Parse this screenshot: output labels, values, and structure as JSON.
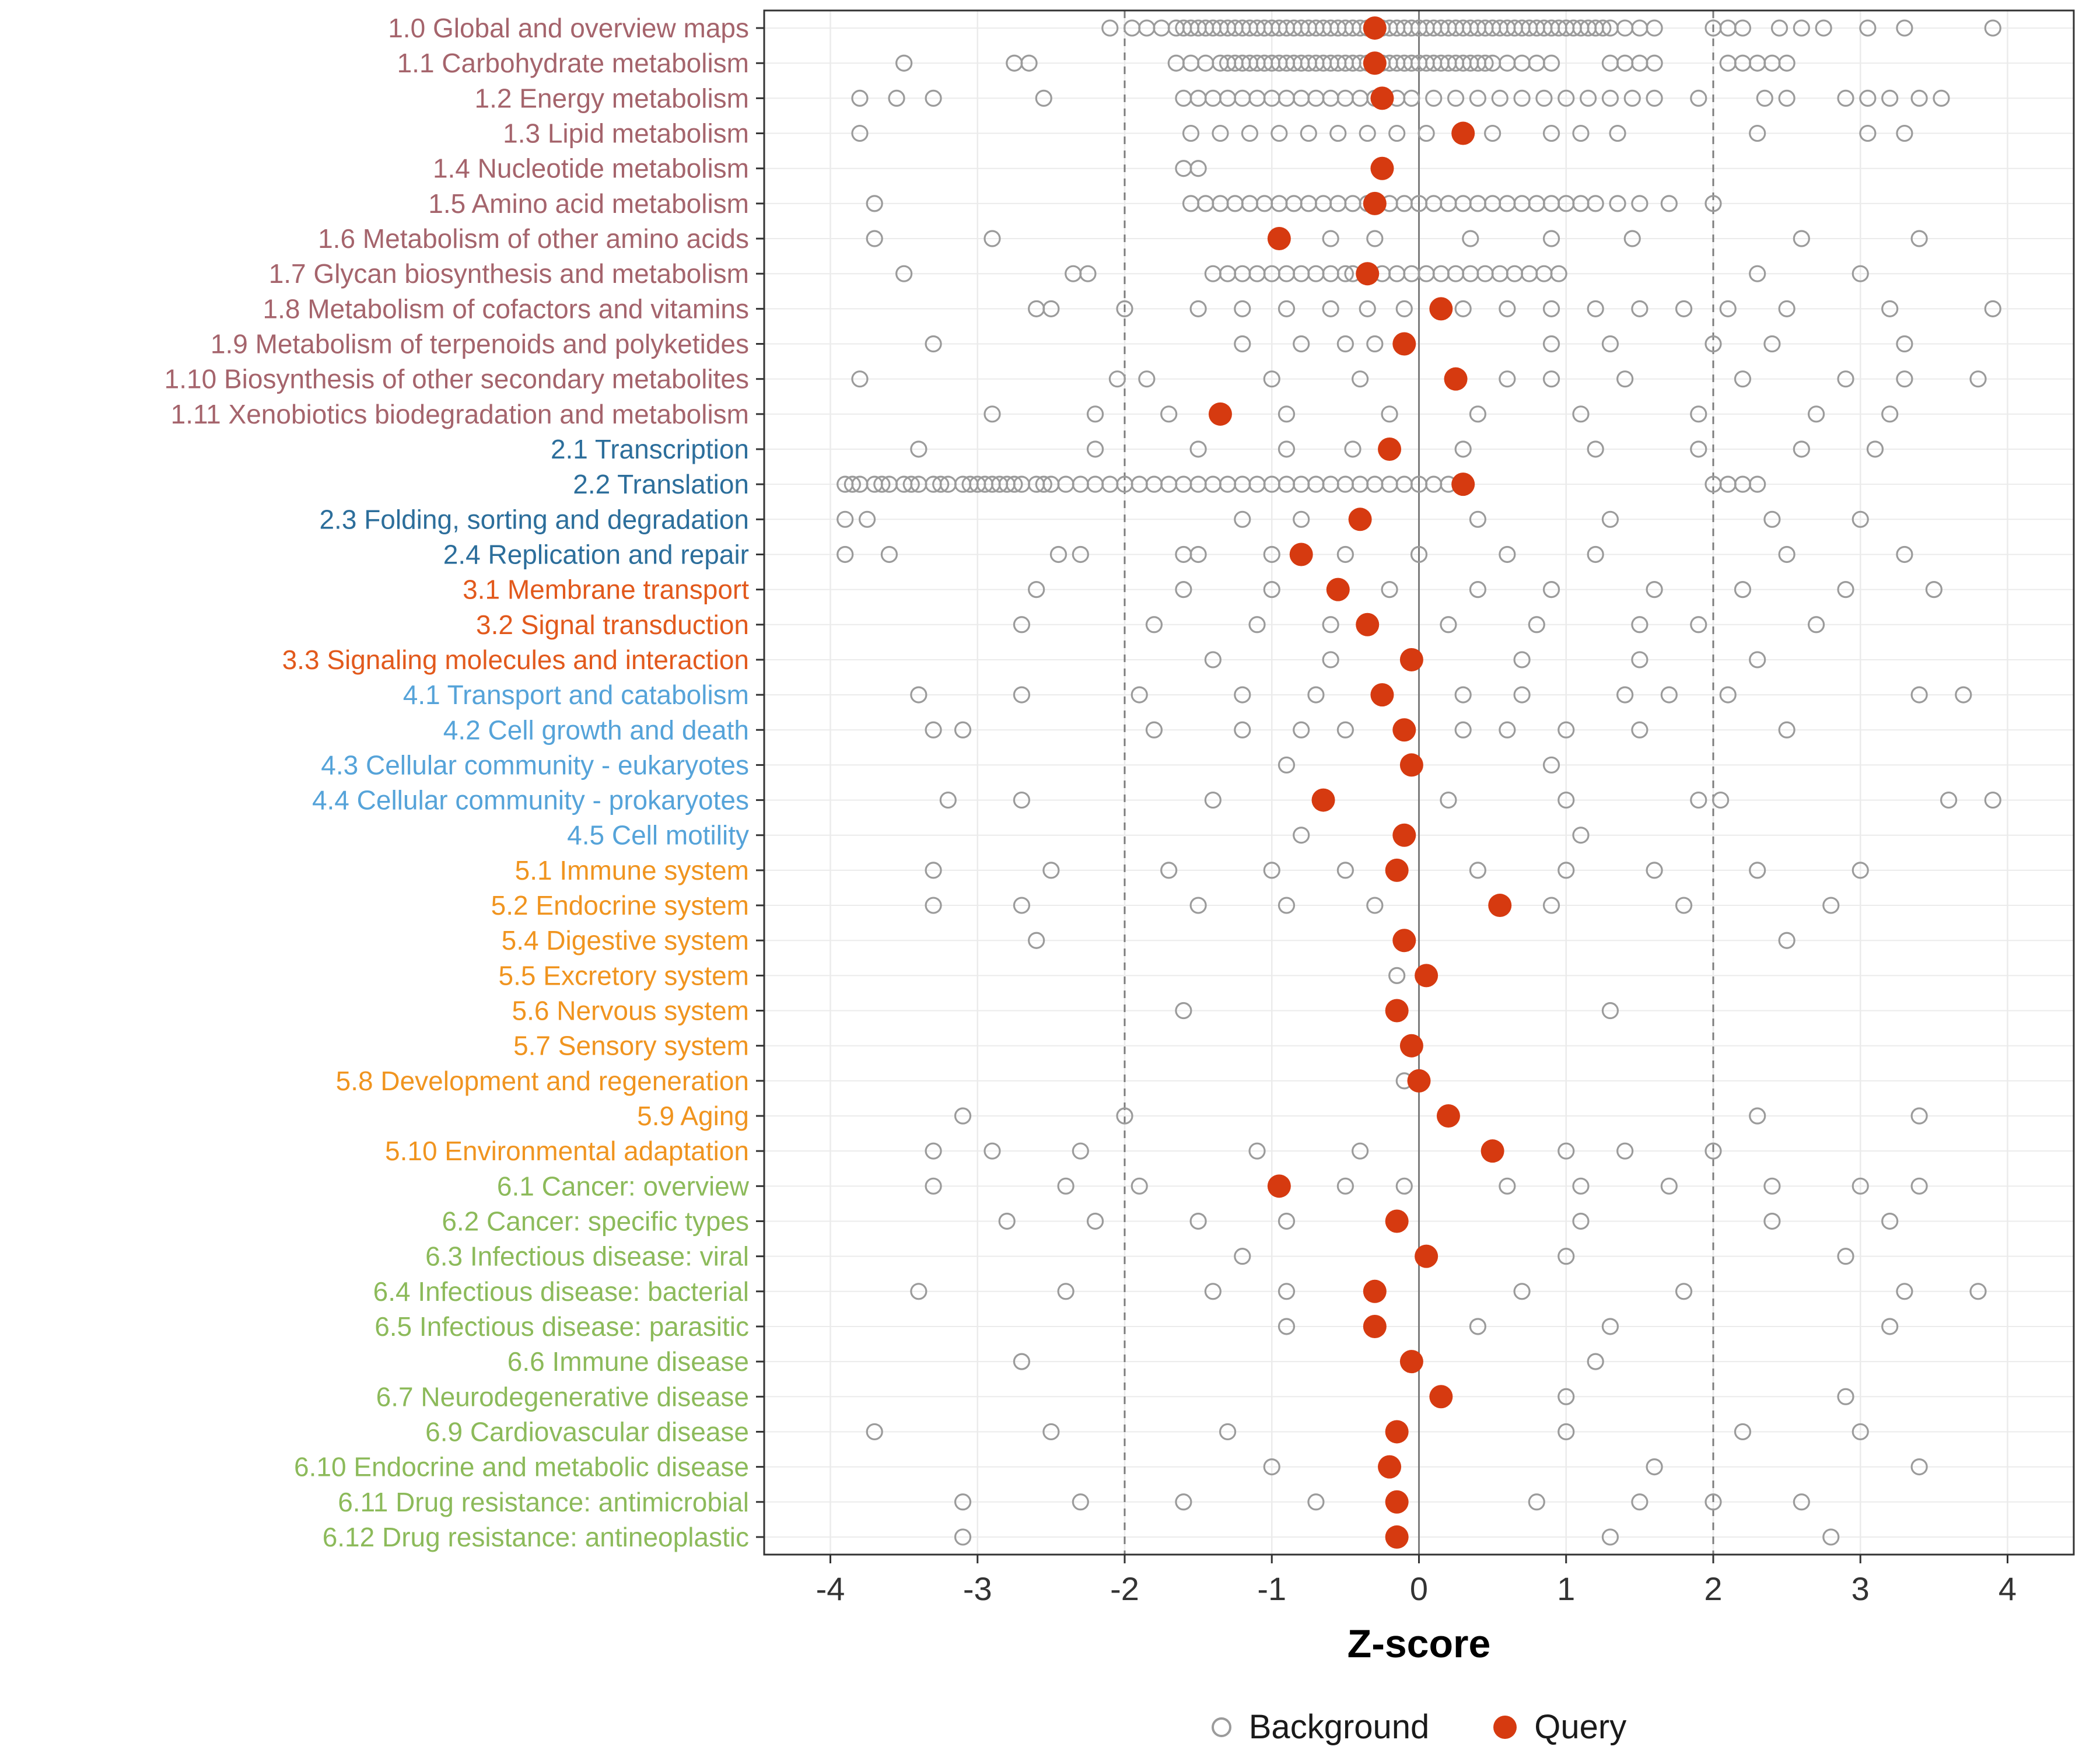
{
  "chart_data": {
    "type": "scatter",
    "title": "",
    "xlabel": "Z-score",
    "xlim": [
      -4.45,
      4.45
    ],
    "x_ticks": [
      -4,
      -3,
      -2,
      -1,
      0,
      1,
      2,
      3,
      4
    ],
    "grid": true,
    "legend_position": "bottom",
    "reference_lines": {
      "solid": [
        0
      ],
      "dashed": [
        -2,
        2
      ]
    },
    "legend": [
      {
        "label": "Background",
        "type": "open-circle",
        "color": "#9b9b9b"
      },
      {
        "label": "Query",
        "type": "filled-circle",
        "color": "#d63a10"
      }
    ],
    "style": {
      "background_point_color": "#9b9b9b",
      "query_point_color": "#d63a10",
      "gridline_color": "#ebebeb",
      "reference_line_color": "#7d7d7d",
      "panel_border_color": "#333333",
      "axis_text_color": "#333333"
    },
    "group_colors": {
      "metabolism": "#a5646c",
      "genetic_information_processing": "#2c6e9b",
      "environmental_information_processing": "#e2591c",
      "cellular_processes": "#55a3d9",
      "organismal_systems": "#f0941f",
      "human_diseases": "#8cba5a"
    },
    "rows": [
      {
        "label": "1.0 Global and overview maps",
        "group": "metabolism",
        "query": -0.3,
        "background": [
          -2.1,
          -1.95,
          -1.85,
          -1.75,
          -1.65,
          -1.6,
          -1.55,
          -1.5,
          -1.45,
          -1.4,
          -1.35,
          -1.3,
          -1.25,
          -1.2,
          -1.15,
          -1.1,
          -1.05,
          -1.0,
          -0.95,
          -0.9,
          -0.85,
          -0.8,
          -0.75,
          -0.7,
          -0.65,
          -0.6,
          -0.55,
          -0.5,
          -0.45,
          -0.4,
          -0.35,
          -0.25,
          -0.2,
          -0.15,
          -0.1,
          -0.05,
          0.0,
          0.05,
          0.1,
          0.15,
          0.2,
          0.25,
          0.3,
          0.35,
          0.4,
          0.45,
          0.5,
          0.55,
          0.6,
          0.65,
          0.7,
          0.75,
          0.8,
          0.85,
          0.9,
          0.95,
          1.0,
          1.05,
          1.1,
          1.15,
          1.2,
          1.25,
          1.3,
          1.4,
          1.5,
          1.6,
          2.0,
          2.1,
          2.2,
          2.45,
          2.6,
          2.75,
          3.05,
          3.3,
          3.9
        ]
      },
      {
        "label": "1.1 Carbohydrate metabolism",
        "group": "metabolism",
        "query": -0.3,
        "background": [
          -3.5,
          -2.75,
          -2.65,
          -1.65,
          -1.55,
          -1.45,
          -1.35,
          -1.3,
          -1.25,
          -1.2,
          -1.15,
          -1.1,
          -1.05,
          -1.0,
          -0.95,
          -0.9,
          -0.85,
          -0.8,
          -0.75,
          -0.7,
          -0.65,
          -0.6,
          -0.55,
          -0.5,
          -0.45,
          -0.4,
          -0.35,
          -0.25,
          -0.2,
          -0.15,
          -0.1,
          -0.05,
          0.0,
          0.05,
          0.1,
          0.15,
          0.2,
          0.25,
          0.3,
          0.35,
          0.4,
          0.45,
          0.5,
          0.6,
          0.7,
          0.8,
          0.9,
          1.3,
          1.4,
          1.5,
          1.6,
          2.1,
          2.2,
          2.3,
          2.4,
          2.5
        ]
      },
      {
        "label": "1.2 Energy metabolism",
        "group": "metabolism",
        "query": -0.25,
        "background": [
          -3.8,
          -3.55,
          -3.3,
          -2.55,
          -1.6,
          -1.5,
          -1.4,
          -1.3,
          -1.2,
          -1.1,
          -1.0,
          -0.9,
          -0.8,
          -0.7,
          -0.6,
          -0.5,
          -0.4,
          -0.3,
          -0.15,
          -0.05,
          0.1,
          0.25,
          0.4,
          0.55,
          0.7,
          0.85,
          1.0,
          1.15,
          1.3,
          1.45,
          1.6,
          1.9,
          2.35,
          2.5,
          2.9,
          3.05,
          3.2,
          3.4,
          3.55
        ]
      },
      {
        "label": "1.3 Lipid metabolism",
        "group": "metabolism",
        "query": 0.3,
        "background": [
          -3.8,
          -1.55,
          -1.35,
          -1.15,
          -0.95,
          -0.75,
          -0.55,
          -0.35,
          -0.15,
          0.05,
          0.5,
          0.9,
          1.1,
          1.35,
          2.3,
          3.05,
          3.3
        ]
      },
      {
        "label": "1.4 Nucleotide metabolism",
        "group": "metabolism",
        "query": -0.25,
        "background": [
          -1.6,
          -1.5
        ]
      },
      {
        "label": "1.5 Amino acid metabolism",
        "group": "metabolism",
        "query": -0.3,
        "background": [
          -3.7,
          -1.55,
          -1.45,
          -1.35,
          -1.25,
          -1.15,
          -1.05,
          -0.95,
          -0.85,
          -0.75,
          -0.65,
          -0.55,
          -0.45,
          -0.35,
          -0.2,
          -0.1,
          0.0,
          0.1,
          0.2,
          0.3,
          0.4,
          0.5,
          0.6,
          0.7,
          0.8,
          0.9,
          1.0,
          1.1,
          1.2,
          1.35,
          1.5,
          1.7,
          2.0
        ]
      },
      {
        "label": "1.6 Metabolism of other amino acids",
        "group": "metabolism",
        "query": -0.95,
        "background": [
          -3.7,
          -2.9,
          -0.6,
          -0.3,
          0.35,
          0.9,
          1.45,
          2.6,
          3.4
        ]
      },
      {
        "label": "1.7 Glycan biosynthesis and metabolism",
        "group": "metabolism",
        "query": -0.35,
        "background": [
          -3.5,
          -2.35,
          -2.25,
          -1.4,
          -1.3,
          -1.2,
          -1.1,
          -1.0,
          -0.9,
          -0.8,
          -0.7,
          -0.6,
          -0.5,
          -0.45,
          -0.25,
          -0.15,
          -0.05,
          0.05,
          0.15,
          0.25,
          0.35,
          0.45,
          0.55,
          0.65,
          0.75,
          0.85,
          0.95,
          2.3,
          3.0
        ]
      },
      {
        "label": "1.8 Metabolism of cofactors and vitamins",
        "group": "metabolism",
        "query": 0.15,
        "background": [
          -2.6,
          -2.5,
          -2.0,
          -1.5,
          -1.2,
          -0.9,
          -0.6,
          -0.35,
          -0.1,
          0.3,
          0.6,
          0.9,
          1.2,
          1.5,
          1.8,
          2.1,
          2.5,
          3.2,
          3.9
        ]
      },
      {
        "label": "1.9 Metabolism of terpenoids and polyketides",
        "group": "metabolism",
        "query": -0.1,
        "background": [
          -3.3,
          -1.2,
          -0.8,
          -0.5,
          -0.3,
          0.9,
          1.3,
          2.0,
          2.4,
          3.3
        ]
      },
      {
        "label": "1.10 Biosynthesis of other secondary metabolites",
        "group": "metabolism",
        "query": 0.25,
        "background": [
          -3.8,
          -2.05,
          -1.85,
          -1.0,
          -0.4,
          0.6,
          0.9,
          1.4,
          2.2,
          2.9,
          3.3,
          3.8
        ]
      },
      {
        "label": "1.11 Xenobiotics biodegradation and metabolism",
        "group": "metabolism",
        "query": -1.35,
        "background": [
          -2.9,
          -2.2,
          -1.7,
          -0.9,
          -0.2,
          0.4,
          1.1,
          1.9,
          2.7,
          3.2
        ]
      },
      {
        "label": "2.1 Transcription",
        "group": "genetic_information_processing",
        "query": -0.2,
        "background": [
          -3.4,
          -2.2,
          -1.5,
          -0.9,
          -0.45,
          0.3,
          1.2,
          1.9,
          2.6,
          3.1
        ]
      },
      {
        "label": "2.2 Translation",
        "group": "genetic_information_processing",
        "query": 0.3,
        "background": [
          -3.9,
          -3.85,
          -3.8,
          -3.7,
          -3.65,
          -3.6,
          -3.5,
          -3.45,
          -3.4,
          -3.3,
          -3.25,
          -3.2,
          -3.1,
          -3.05,
          -3.0,
          -2.95,
          -2.9,
          -2.85,
          -2.8,
          -2.75,
          -2.7,
          -2.6,
          -2.55,
          -2.5,
          -2.4,
          -2.3,
          -2.2,
          -2.1,
          -2.0,
          -1.9,
          -1.8,
          -1.7,
          -1.6,
          -1.5,
          -1.4,
          -1.3,
          -1.2,
          -1.1,
          -1.0,
          -0.9,
          -0.8,
          -0.7,
          -0.6,
          -0.5,
          -0.4,
          -0.3,
          -0.2,
          -0.1,
          0.0,
          0.1,
          0.2,
          2.0,
          2.1,
          2.2,
          2.3
        ]
      },
      {
        "label": "2.3 Folding, sorting and degradation",
        "group": "genetic_information_processing",
        "query": -0.4,
        "background": [
          -3.9,
          -3.75,
          -1.2,
          -0.8,
          0.4,
          1.3,
          2.4,
          3.0
        ]
      },
      {
        "label": "2.4 Replication and repair",
        "group": "genetic_information_processing",
        "query": -0.8,
        "background": [
          -3.9,
          -3.6,
          -2.45,
          -2.3,
          -1.6,
          -1.5,
          -1.0,
          -0.5,
          0.0,
          0.6,
          1.2,
          2.5,
          3.3
        ]
      },
      {
        "label": "3.1 Membrane transport",
        "group": "environmental_information_processing",
        "query": -0.55,
        "background": [
          -2.6,
          -1.6,
          -1.0,
          -0.2,
          0.4,
          0.9,
          1.6,
          2.2,
          2.9,
          3.5
        ]
      },
      {
        "label": "3.2 Signal transduction",
        "group": "environmental_information_processing",
        "query": -0.35,
        "background": [
          -2.7,
          -1.8,
          -1.1,
          -0.6,
          0.2,
          0.8,
          1.5,
          1.9,
          2.7
        ]
      },
      {
        "label": "3.3 Signaling molecules and interaction",
        "group": "environmental_information_processing",
        "query": -0.05,
        "background": [
          -1.4,
          -0.6,
          0.7,
          1.5,
          2.3
        ]
      },
      {
        "label": "4.1 Transport and catabolism",
        "group": "cellular_processes",
        "query": -0.25,
        "background": [
          -3.4,
          -2.7,
          -1.9,
          -1.2,
          -0.7,
          0.3,
          0.7,
          1.4,
          1.7,
          2.1,
          3.4,
          3.7
        ]
      },
      {
        "label": "4.2 Cell growth and death",
        "group": "cellular_processes",
        "query": -0.1,
        "background": [
          -3.3,
          -3.1,
          -1.8,
          -1.2,
          -0.8,
          -0.5,
          0.3,
          0.6,
          1.0,
          1.5,
          2.5
        ]
      },
      {
        "label": "4.3 Cellular community - eukaryotes",
        "group": "cellular_processes",
        "query": -0.05,
        "background": [
          -0.9,
          0.9
        ]
      },
      {
        "label": "4.4 Cellular community - prokaryotes",
        "group": "cellular_processes",
        "query": -0.65,
        "background": [
          -3.2,
          -2.7,
          -1.4,
          0.2,
          1.0,
          1.9,
          2.05,
          3.6,
          3.9
        ]
      },
      {
        "label": "4.5 Cell motility",
        "group": "cellular_processes",
        "query": -0.1,
        "background": [
          -0.8,
          1.1
        ]
      },
      {
        "label": "5.1 Immune system",
        "group": "organismal_systems",
        "query": -0.15,
        "background": [
          -3.3,
          -2.5,
          -1.7,
          -1.0,
          -0.5,
          0.4,
          1.0,
          1.6,
          2.3,
          3.0
        ]
      },
      {
        "label": "5.2 Endocrine system",
        "group": "organismal_systems",
        "query": 0.55,
        "background": [
          -3.3,
          -2.7,
          -1.5,
          -0.9,
          -0.3,
          0.9,
          1.8,
          2.8
        ]
      },
      {
        "label": "5.4 Digestive system",
        "group": "organismal_systems",
        "query": -0.1,
        "background": [
          -2.6,
          2.5
        ]
      },
      {
        "label": "5.5 Excretory system",
        "group": "organismal_systems",
        "query": 0.05,
        "background": [
          -0.15
        ]
      },
      {
        "label": "5.6 Nervous system",
        "group": "organismal_systems",
        "query": -0.15,
        "background": [
          -1.6,
          1.3
        ]
      },
      {
        "label": "5.7 Sensory system",
        "group": "organismal_systems",
        "query": -0.05,
        "background": []
      },
      {
        "label": "5.8 Development and regeneration",
        "group": "organismal_systems",
        "query": 0.0,
        "background": [
          -0.1
        ]
      },
      {
        "label": "5.9 Aging",
        "group": "organismal_systems",
        "query": 0.2,
        "background": [
          -3.1,
          -2.0,
          2.3,
          3.4
        ]
      },
      {
        "label": "5.10 Environmental adaptation",
        "group": "organismal_systems",
        "query": 0.5,
        "background": [
          -3.3,
          -2.9,
          -2.3,
          -1.1,
          -0.4,
          1.0,
          1.4,
          2.0
        ]
      },
      {
        "label": "6.1 Cancer: overview",
        "group": "human_diseases",
        "query": -0.95,
        "background": [
          -3.3,
          -2.4,
          -1.9,
          -0.5,
          -0.1,
          0.6,
          1.1,
          1.7,
          2.4,
          3.0,
          3.4
        ]
      },
      {
        "label": "6.2 Cancer: specific types",
        "group": "human_diseases",
        "query": -0.15,
        "background": [
          -2.8,
          -2.2,
          -1.5,
          -0.9,
          1.1,
          2.4,
          3.2
        ]
      },
      {
        "label": "6.3 Infectious disease: viral",
        "group": "human_diseases",
        "query": 0.05,
        "background": [
          -1.2,
          1.0,
          2.9
        ]
      },
      {
        "label": "6.4 Infectious disease: bacterial",
        "group": "human_diseases",
        "query": -0.3,
        "background": [
          -3.4,
          -2.4,
          -1.4,
          -0.9,
          0.7,
          1.8,
          3.3,
          3.8
        ]
      },
      {
        "label": "6.5 Infectious disease: parasitic",
        "group": "human_diseases",
        "query": -0.3,
        "background": [
          -0.9,
          0.4,
          1.3,
          3.2
        ]
      },
      {
        "label": "6.6 Immune disease",
        "group": "human_diseases",
        "query": -0.05,
        "background": [
          -2.7,
          1.2
        ]
      },
      {
        "label": "6.7 Neurodegenerative disease",
        "group": "human_diseases",
        "query": 0.15,
        "background": [
          1.0,
          2.9
        ]
      },
      {
        "label": "6.9 Cardiovascular disease",
        "group": "human_diseases",
        "query": -0.15,
        "background": [
          -3.7,
          -2.5,
          -1.3,
          1.0,
          2.2,
          3.0
        ]
      },
      {
        "label": "6.10 Endocrine and metabolic disease",
        "group": "human_diseases",
        "query": -0.2,
        "background": [
          -1.0,
          1.6,
          3.4
        ]
      },
      {
        "label": "6.11 Drug resistance: antimicrobial",
        "group": "human_diseases",
        "query": -0.15,
        "background": [
          -3.1,
          -2.3,
          -1.6,
          -0.7,
          0.8,
          1.5,
          2.0,
          2.6
        ]
      },
      {
        "label": "6.12 Drug resistance: antineoplastic",
        "group": "human_diseases",
        "query": -0.15,
        "background": [
          -3.1,
          1.3,
          2.8
        ]
      }
    ]
  }
}
